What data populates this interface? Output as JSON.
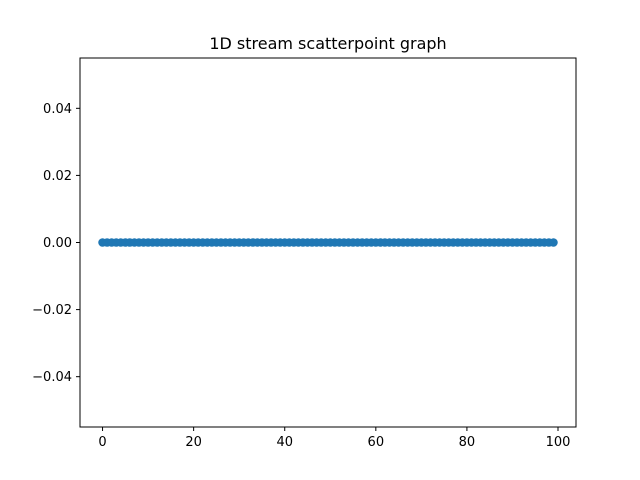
{
  "chart_data": {
    "type": "scatter",
    "title": "1D stream scatterpoint graph",
    "xlabel": "",
    "ylabel": "",
    "xlim": [
      -4.95,
      103.95
    ],
    "ylim": [
      -0.055,
      0.055
    ],
    "x_ticks": [
      0,
      20,
      40,
      60,
      80,
      100
    ],
    "x_tick_labels": [
      "0",
      "20",
      "40",
      "60",
      "80",
      "100"
    ],
    "y_ticks": [
      -0.04,
      -0.02,
      0.0,
      0.02,
      0.04
    ],
    "y_tick_labels": [
      "−0.04",
      "−0.02",
      "0.00",
      "0.02",
      "0.04"
    ],
    "grid": false,
    "series": [
      {
        "color": "#1f77b4",
        "x": [
          0,
          1,
          2,
          3,
          4,
          5,
          6,
          7,
          8,
          9,
          10,
          11,
          12,
          13,
          14,
          15,
          16,
          17,
          18,
          19,
          20,
          21,
          22,
          23,
          24,
          25,
          26,
          27,
          28,
          29,
          30,
          31,
          32,
          33,
          34,
          35,
          36,
          37,
          38,
          39,
          40,
          41,
          42,
          43,
          44,
          45,
          46,
          47,
          48,
          49,
          50,
          51,
          52,
          53,
          54,
          55,
          56,
          57,
          58,
          59,
          60,
          61,
          62,
          63,
          64,
          65,
          66,
          67,
          68,
          69,
          70,
          71,
          72,
          73,
          74,
          75,
          76,
          77,
          78,
          79,
          80,
          81,
          82,
          83,
          84,
          85,
          86,
          87,
          88,
          89,
          90,
          91,
          92,
          93,
          94,
          95,
          96,
          97,
          98,
          99
        ],
        "y": [
          0,
          0,
          0,
          0,
          0,
          0,
          0,
          0,
          0,
          0,
          0,
          0,
          0,
          0,
          0,
          0,
          0,
          0,
          0,
          0,
          0,
          0,
          0,
          0,
          0,
          0,
          0,
          0,
          0,
          0,
          0,
          0,
          0,
          0,
          0,
          0,
          0,
          0,
          0,
          0,
          0,
          0,
          0,
          0,
          0,
          0,
          0,
          0,
          0,
          0,
          0,
          0,
          0,
          0,
          0,
          0,
          0,
          0,
          0,
          0,
          0,
          0,
          0,
          0,
          0,
          0,
          0,
          0,
          0,
          0,
          0,
          0,
          0,
          0,
          0,
          0,
          0,
          0,
          0,
          0,
          0,
          0,
          0,
          0,
          0,
          0,
          0,
          0,
          0,
          0,
          0,
          0,
          0,
          0,
          0,
          0,
          0,
          0,
          0,
          0
        ]
      }
    ]
  }
}
